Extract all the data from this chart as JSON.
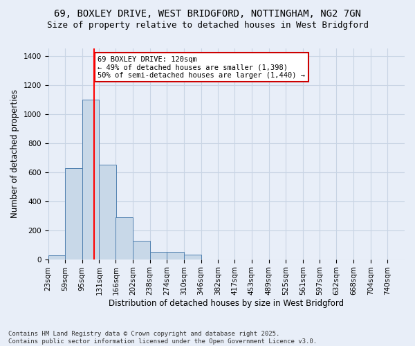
{
  "title_line1": "69, BOXLEY DRIVE, WEST BRIDGFORD, NOTTINGHAM, NG2 7GN",
  "title_line2": "Size of property relative to detached houses in West Bridgford",
  "xlabel": "Distribution of detached houses by size in West Bridgford",
  "ylabel": "Number of detached properties",
  "bin_labels": [
    "23sqm",
    "59sqm",
    "95sqm",
    "131sqm",
    "166sqm",
    "202sqm",
    "238sqm",
    "274sqm",
    "310sqm",
    "346sqm",
    "382sqm",
    "417sqm",
    "453sqm",
    "489sqm",
    "525sqm",
    "561sqm",
    "597sqm",
    "632sqm",
    "668sqm",
    "704sqm",
    "740sqm"
  ],
  "bin_edges": [
    23,
    59,
    95,
    131,
    166,
    202,
    238,
    274,
    310,
    346,
    382,
    417,
    453,
    489,
    525,
    561,
    597,
    632,
    668,
    704,
    740
  ],
  "bar_heights": [
    25,
    625,
    1100,
    650,
    290,
    125,
    50,
    50,
    30,
    0,
    0,
    0,
    0,
    0,
    0,
    0,
    0,
    0,
    0,
    0
  ],
  "bar_color": "#c8d8e8",
  "bar_edge_color": "#5080b0",
  "grid_color": "#c8d4e4",
  "background_color": "#e8eef8",
  "red_line_x": 120,
  "annotation_text": "69 BOXLEY DRIVE: 120sqm\n← 49% of detached houses are smaller (1,398)\n50% of semi-detached houses are larger (1,440) →",
  "annotation_box_color": "#ffffff",
  "annotation_box_edge_color": "#cc0000",
  "ylim": [
    0,
    1450
  ],
  "yticks": [
    0,
    200,
    400,
    600,
    800,
    1000,
    1200,
    1400
  ],
  "footnote": "Contains HM Land Registry data © Crown copyright and database right 2025.\nContains public sector information licensed under the Open Government Licence v3.0.",
  "title_fontsize": 10,
  "subtitle_fontsize": 9,
  "label_fontsize": 8.5,
  "tick_fontsize": 7.5,
  "annot_fontsize": 7.5,
  "footnote_fontsize": 6.5
}
